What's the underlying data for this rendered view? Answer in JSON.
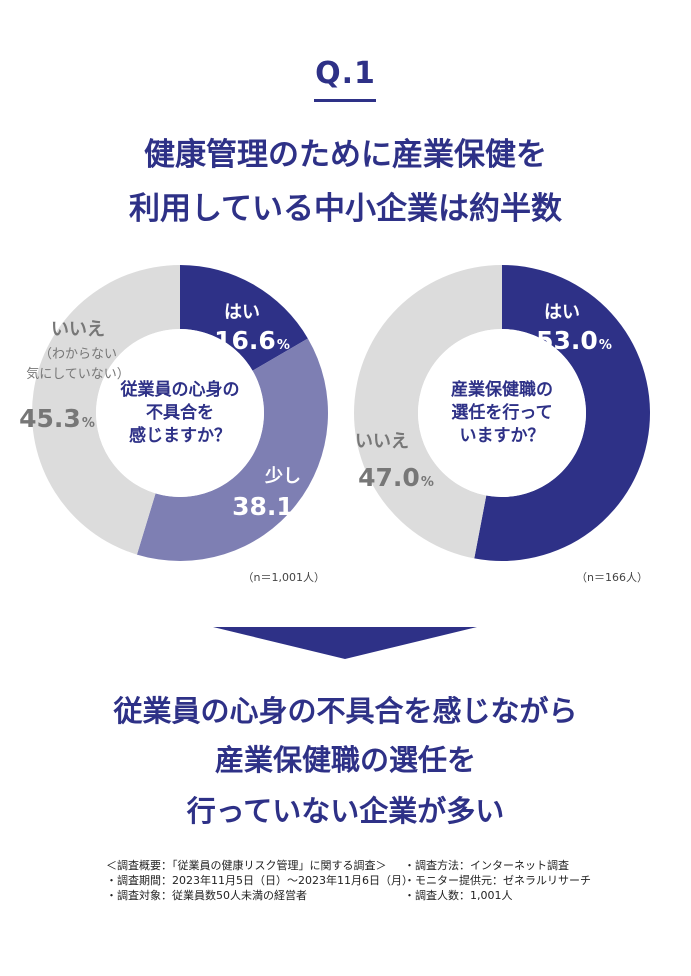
{
  "question_label": "Q.1",
  "headline": [
    "健康管理のために産業保健を",
    "利用している中小企業は約半数"
  ],
  "chart_data": [
    {
      "type": "pie",
      "center_text": [
        "従業員の心身の",
        "不具合を",
        "感じますか？"
      ],
      "categories": [
        "はい",
        "少し",
        "いいえ"
      ],
      "category_notes": [
        "",
        "",
        "（わからない",
        "気にしていない）"
      ],
      "values": [
        16.6,
        38.1,
        45.3
      ],
      "value_labels": [
        "16.6",
        "38.1",
        "45.3"
      ],
      "unit": "%",
      "colors": [
        "#2e3187",
        "#7e7fb3",
        "#dcdcdc"
      ],
      "n_label": "（n＝1,001人）"
    },
    {
      "type": "pie",
      "center_text": [
        "産業保健職の",
        "選任を行って",
        "いますか？"
      ],
      "categories": [
        "はい",
        "いいえ"
      ],
      "values": [
        53.0,
        47.0
      ],
      "value_labels": [
        "53.0",
        "47.0"
      ],
      "unit": "%",
      "colors": [
        "#2e3187",
        "#dcdcdc"
      ],
      "n_label": "（n＝166人）"
    }
  ],
  "arrow_color": "#2e3187",
  "conclusion": [
    "従業員の心身の不具合を感じながら",
    "産業保健職の選任を",
    "行っていない企業が多い"
  ],
  "footnotes": {
    "left": [
      "＜調査概要：「従業員の健康リスク管理」に関する調査＞",
      "・調査期間：2023年11月5日（日）〜2023年11月6日（月）",
      "・調査対象：従業員数50人未満の経営者"
    ],
    "right": [
      "・調査方法：インターネット調査",
      "・モニター提供元：ゼネラルリサーチ",
      "・調査人数：1,001人"
    ]
  }
}
